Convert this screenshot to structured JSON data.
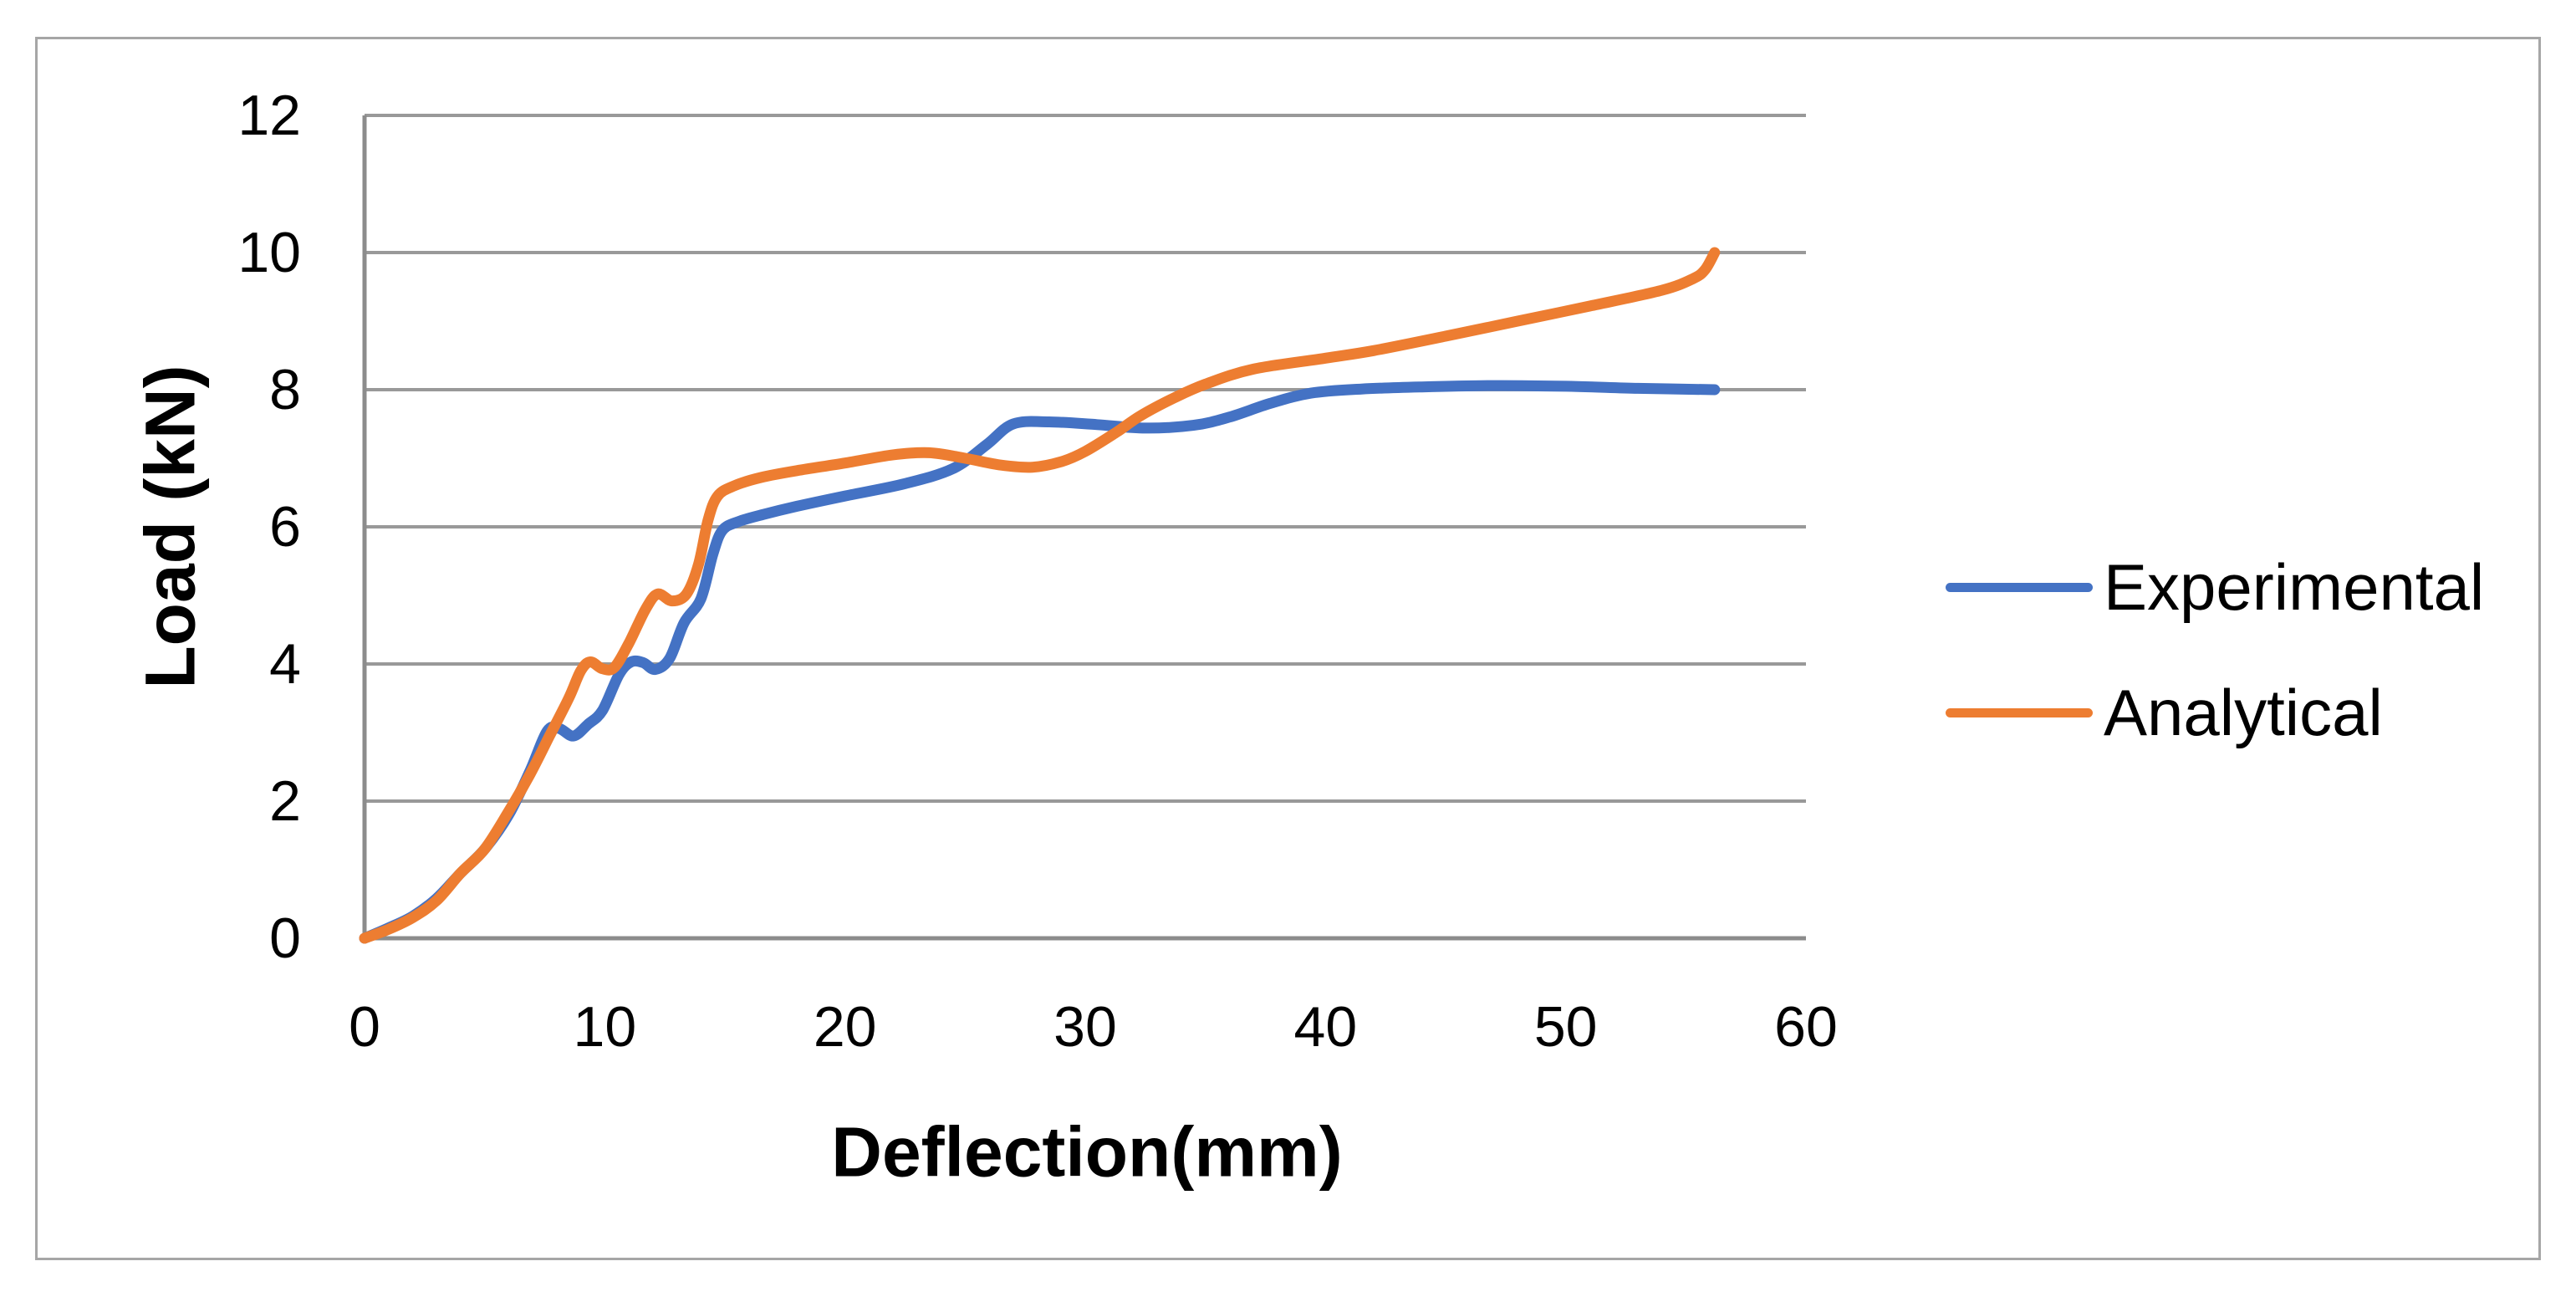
{
  "chart_data": {
    "type": "line",
    "title": "",
    "xlabel": "Deflection(mm)",
    "ylabel": "Load (kN)",
    "xlim": [
      0,
      60
    ],
    "ylim": [
      0,
      12
    ],
    "x_ticks": [
      "0",
      "10",
      "20",
      "30",
      "40",
      "50",
      "60"
    ],
    "y_ticks": [
      "0",
      "2",
      "4",
      "6",
      "8",
      "10",
      "12"
    ],
    "grid": "horizontal-only",
    "legend_position": "right-middle",
    "series": [
      {
        "name": "Experimental",
        "color": "#4472C4",
        "points": [
          [
            0,
            0
          ],
          [
            1,
            0.15
          ],
          [
            2,
            0.32
          ],
          [
            3,
            0.58
          ],
          [
            4,
            0.95
          ],
          [
            5,
            1.3
          ],
          [
            6,
            1.8
          ],
          [
            6.9,
            2.45
          ],
          [
            7.6,
            3.02
          ],
          [
            8.1,
            3.06
          ],
          [
            8.7,
            2.95
          ],
          [
            9.3,
            3.12
          ],
          [
            9.9,
            3.32
          ],
          [
            10.6,
            3.85
          ],
          [
            11.1,
            4.03
          ],
          [
            11.6,
            4.02
          ],
          [
            12.1,
            3.92
          ],
          [
            12.7,
            4.08
          ],
          [
            13.3,
            4.6
          ],
          [
            14,
            4.95
          ],
          [
            14.5,
            5.6
          ],
          [
            14.9,
            5.95
          ],
          [
            15.6,
            6.08
          ],
          [
            16.6,
            6.18
          ],
          [
            18,
            6.3
          ],
          [
            20,
            6.45
          ],
          [
            22.5,
            6.63
          ],
          [
            24.5,
            6.85
          ],
          [
            25.9,
            7.2
          ],
          [
            27,
            7.5
          ],
          [
            28.5,
            7.53
          ],
          [
            30.5,
            7.49
          ],
          [
            32.5,
            7.44
          ],
          [
            34.5,
            7.48
          ],
          [
            36,
            7.6
          ],
          [
            37.7,
            7.8
          ],
          [
            39.4,
            7.95
          ],
          [
            41.5,
            8.01
          ],
          [
            44,
            8.04
          ],
          [
            47,
            8.06
          ],
          [
            50,
            8.05
          ],
          [
            53,
            8.02
          ],
          [
            56.2,
            8.0
          ]
        ]
      },
      {
        "name": "Analytical",
        "color": "#ED7D31",
        "points": [
          [
            0,
            0
          ],
          [
            1,
            0.13
          ],
          [
            2,
            0.3
          ],
          [
            3,
            0.55
          ],
          [
            4,
            0.95
          ],
          [
            5,
            1.3
          ],
          [
            6,
            1.85
          ],
          [
            6.9,
            2.4
          ],
          [
            7.7,
            2.95
          ],
          [
            8.5,
            3.5
          ],
          [
            9,
            3.9
          ],
          [
            9.4,
            4.03
          ],
          [
            9.9,
            3.93
          ],
          [
            10.4,
            3.95
          ],
          [
            11,
            4.3
          ],
          [
            11.7,
            4.8
          ],
          [
            12.2,
            5.02
          ],
          [
            12.8,
            4.92
          ],
          [
            13.4,
            5.02
          ],
          [
            13.9,
            5.45
          ],
          [
            14.3,
            6.1
          ],
          [
            14.7,
            6.45
          ],
          [
            15.4,
            6.6
          ],
          [
            16.5,
            6.72
          ],
          [
            18,
            6.82
          ],
          [
            20,
            6.93
          ],
          [
            22,
            7.05
          ],
          [
            23.5,
            7.08
          ],
          [
            25,
            7.0
          ],
          [
            26.5,
            6.9
          ],
          [
            27.8,
            6.87
          ],
          [
            29,
            6.95
          ],
          [
            30,
            7.1
          ],
          [
            31.3,
            7.38
          ],
          [
            32.3,
            7.62
          ],
          [
            33.7,
            7.88
          ],
          [
            35,
            8.08
          ],
          [
            37,
            8.3
          ],
          [
            40,
            8.46
          ],
          [
            42,
            8.57
          ],
          [
            45,
            8.78
          ],
          [
            48,
            9.0
          ],
          [
            51,
            9.22
          ],
          [
            54,
            9.45
          ],
          [
            55.3,
            9.62
          ],
          [
            55.8,
            9.75
          ],
          [
            56.2,
            10.0
          ]
        ]
      }
    ]
  },
  "colors": {
    "background": "#FFFFFF",
    "outer_border": "#A6A6A6",
    "gridline": "#999999",
    "axis_line": "#8C8C8C",
    "text": "#000000"
  }
}
